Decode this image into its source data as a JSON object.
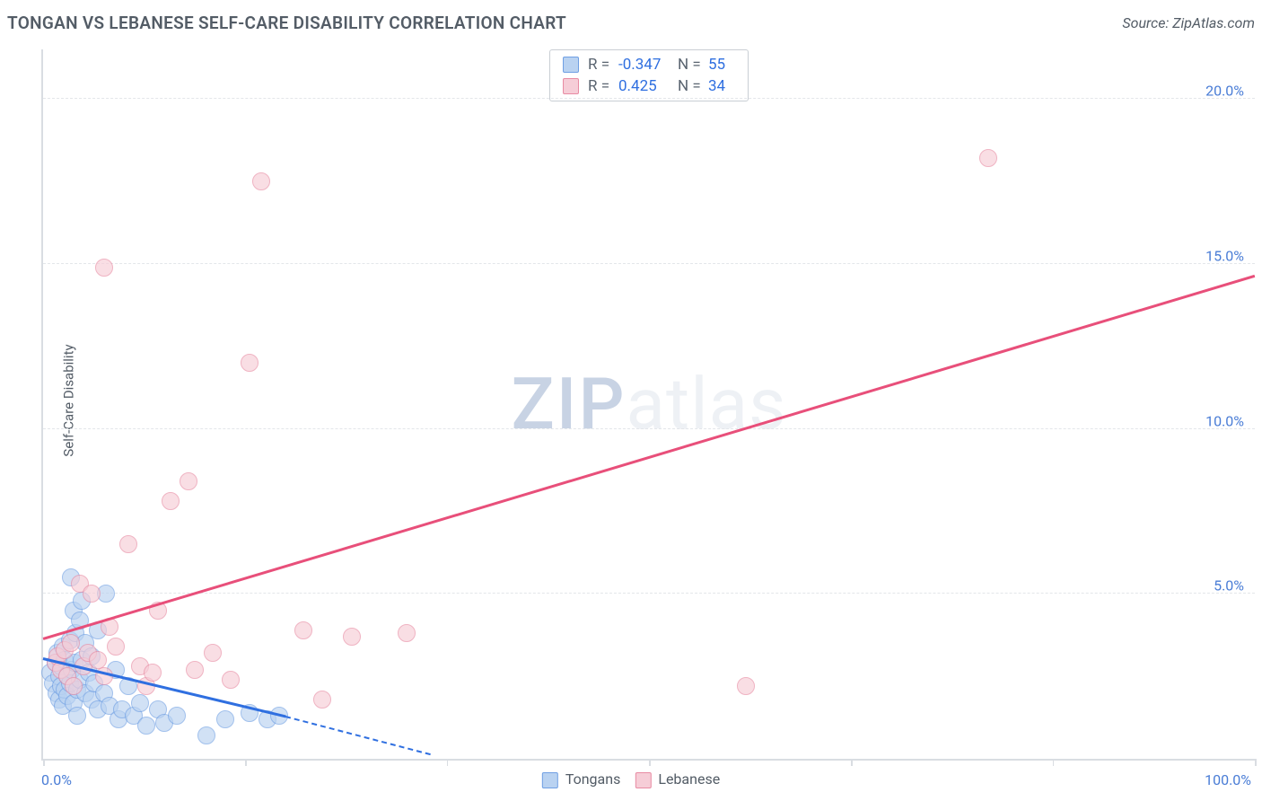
{
  "header": {
    "title": "TONGAN VS LEBANESE SELF-CARE DISABILITY CORRELATION CHART",
    "source_label": "Source: ZipAtlas.com"
  },
  "watermark": {
    "part1": "ZIP",
    "part2": "atlas"
  },
  "chart": {
    "type": "scatter",
    "xlim": [
      0,
      100
    ],
    "ylim": [
      0,
      21.5
    ],
    "x_ticks": [
      0,
      16.67,
      33.33,
      50,
      66.67,
      83.33,
      100
    ],
    "x_tick_labels_visible": {
      "0": "0.0%",
      "100": "100.0%"
    },
    "y_ticks": [
      5,
      10,
      15,
      20
    ],
    "y_tick_labels": [
      "5.0%",
      "10.0%",
      "15.0%",
      "20.0%"
    ],
    "ylabel": "Self-Care Disability",
    "grid_color": "#e3e6ea",
    "axis_color": "#d9dde2",
    "tick_label_color": "#4a7dd6",
    "background_color": "#ffffff",
    "series": [
      {
        "name": "Tongans",
        "fill": "#b9d2f1",
        "stroke": "#6f9fe3",
        "fill_opacity": 0.65,
        "marker_radius": 10,
        "R": "-0.347",
        "N": "55",
        "trend": {
          "x1": 0,
          "y1": 3.0,
          "x2": 20,
          "y2": 1.25,
          "dash_x2": 32,
          "dash_y2": 0.1,
          "color": "#2f6fe0"
        },
        "points": [
          [
            0.6,
            2.6
          ],
          [
            0.8,
            2.3
          ],
          [
            1.0,
            2.9
          ],
          [
            1.1,
            2.0
          ],
          [
            1.2,
            3.2
          ],
          [
            1.3,
            2.5
          ],
          [
            1.3,
            1.8
          ],
          [
            1.5,
            2.2
          ],
          [
            1.5,
            2.8
          ],
          [
            1.6,
            3.4
          ],
          [
            1.6,
            1.6
          ],
          [
            1.8,
            2.1
          ],
          [
            1.8,
            3.0
          ],
          [
            2.0,
            2.5
          ],
          [
            2.0,
            1.9
          ],
          [
            2.2,
            3.6
          ],
          [
            2.2,
            2.3
          ],
          [
            2.3,
            5.5
          ],
          [
            2.4,
            2.7
          ],
          [
            2.5,
            4.5
          ],
          [
            2.5,
            1.7
          ],
          [
            2.6,
            2.9
          ],
          [
            2.7,
            3.8
          ],
          [
            2.8,
            2.1
          ],
          [
            2.8,
            1.3
          ],
          [
            3.0,
            4.2
          ],
          [
            3.0,
            2.4
          ],
          [
            3.2,
            3.0
          ],
          [
            3.2,
            4.8
          ],
          [
            3.5,
            3.5
          ],
          [
            3.5,
            2.0
          ],
          [
            3.8,
            2.6
          ],
          [
            4.0,
            3.1
          ],
          [
            4.0,
            1.8
          ],
          [
            4.2,
            2.3
          ],
          [
            4.5,
            3.9
          ],
          [
            4.5,
            1.5
          ],
          [
            5.0,
            2.0
          ],
          [
            5.2,
            5.0
          ],
          [
            5.5,
            1.6
          ],
          [
            6.0,
            2.7
          ],
          [
            6.2,
            1.2
          ],
          [
            6.5,
            1.5
          ],
          [
            7.0,
            2.2
          ],
          [
            7.5,
            1.3
          ],
          [
            8.0,
            1.7
          ],
          [
            8.5,
            1.0
          ],
          [
            9.5,
            1.5
          ],
          [
            10.0,
            1.1
          ],
          [
            11.0,
            1.3
          ],
          [
            13.5,
            0.7
          ],
          [
            15.0,
            1.2
          ],
          [
            17.0,
            1.4
          ],
          [
            18.5,
            1.2
          ],
          [
            19.5,
            1.3
          ]
        ]
      },
      {
        "name": "Lebanese",
        "fill": "#f6cdd7",
        "stroke": "#e88ba3",
        "fill_opacity": 0.65,
        "marker_radius": 10,
        "R": "0.425",
        "N": "34",
        "trend": {
          "x1": 0,
          "y1": 3.6,
          "x2": 100,
          "y2": 14.6,
          "color": "#e84f7a"
        },
        "points": [
          [
            1.0,
            2.9
          ],
          [
            1.2,
            3.1
          ],
          [
            1.5,
            2.7
          ],
          [
            1.8,
            3.3
          ],
          [
            2.0,
            2.5
          ],
          [
            2.3,
            3.5
          ],
          [
            2.5,
            2.2
          ],
          [
            3.0,
            5.3
          ],
          [
            3.3,
            2.8
          ],
          [
            3.7,
            3.2
          ],
          [
            4.0,
            5.0
          ],
          [
            4.5,
            3.0
          ],
          [
            5.0,
            2.5
          ],
          [
            5.5,
            4.0
          ],
          [
            5.0,
            14.9
          ],
          [
            6.0,
            3.4
          ],
          [
            7.0,
            6.5
          ],
          [
            8.0,
            2.8
          ],
          [
            8.5,
            2.2
          ],
          [
            9.0,
            2.6
          ],
          [
            9.5,
            4.5
          ],
          [
            10.5,
            7.8
          ],
          [
            12.0,
            8.4
          ],
          [
            12.5,
            2.7
          ],
          [
            14.0,
            3.2
          ],
          [
            15.5,
            2.4
          ],
          [
            17.0,
            12.0
          ],
          [
            18.0,
            17.5
          ],
          [
            21.5,
            3.9
          ],
          [
            23.0,
            1.8
          ],
          [
            25.5,
            3.7
          ],
          [
            30.0,
            3.8
          ],
          [
            58.0,
            2.2
          ],
          [
            78.0,
            18.2
          ]
        ]
      }
    ],
    "stats_box": {
      "r_label": "R =",
      "n_label": "N ="
    },
    "legend_labels": [
      "Tongans",
      "Lebanese"
    ]
  }
}
